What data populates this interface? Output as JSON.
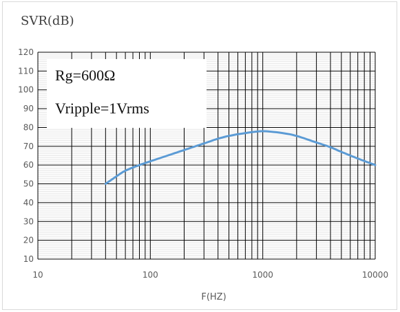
{
  "chart_data": {
    "type": "line",
    "title": "",
    "ylabel": "SVR(dB)",
    "xlabel": "F(HZ)",
    "x_scale": "log",
    "xlim": [
      10,
      10000
    ],
    "ylim": [
      10,
      120
    ],
    "x_ticks": [
      "10",
      "100",
      "1000",
      "10000"
    ],
    "y_ticks": [
      "10",
      "20",
      "30",
      "40",
      "50",
      "60",
      "70",
      "80",
      "90",
      "100",
      "110",
      "120"
    ],
    "grid": true,
    "annotations": [
      "Rg=600Ω",
      "Vripple=1Vrms"
    ],
    "series": [
      {
        "color": "#5b9bd5",
        "x": [
          40,
          50,
          60,
          80,
          100,
          150,
          200,
          300,
          400,
          500,
          700,
          1000,
          1500,
          2000,
          3000,
          4000,
          5000,
          7000,
          10000
        ],
        "y": [
          50,
          54,
          57,
          60,
          62,
          65.5,
          68,
          71.5,
          74,
          75.5,
          77,
          78,
          77,
          75.5,
          72,
          69.5,
          67,
          63.5,
          60
        ]
      }
    ]
  }
}
